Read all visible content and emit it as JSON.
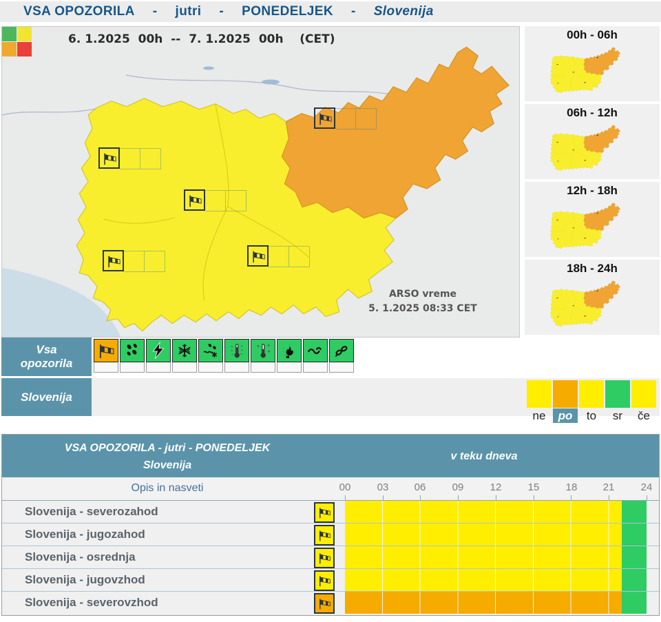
{
  "header": {
    "parts": [
      "VSA OPOZORILA",
      "-",
      "jutri",
      "-",
      "PONEDELJEK",
      "-",
      "Slovenija"
    ]
  },
  "map": {
    "date_range": "6. 1.2025  00h  --  7. 1.2025  00h    (CET)",
    "attribution_line1": "ARSO vreme",
    "attribution_line2": "5. 1.2025  08:33 CET",
    "legend_colors": {
      "green": "#4cb85c",
      "yellow": "#f2e430",
      "orange": "#f0a92f",
      "red": "#e8403a"
    },
    "region_colors": {
      "warning_yellow": "#f8ee2d",
      "warning_orange": "#f0a433"
    },
    "marker_icon": "windsock"
  },
  "timeline_maps": [
    {
      "label": "00h - 06h"
    },
    {
      "label": "06h - 12h"
    },
    {
      "label": "12h - 18h"
    },
    {
      "label": "18h - 24h"
    }
  ],
  "filters": {
    "all_warnings_label": "Vsa opozorila",
    "region_label": "Slovenija",
    "warning_types": [
      {
        "icon": "wind",
        "bg": "#f5ab00",
        "active": true
      },
      {
        "icon": "rain",
        "bg": "#2ecc63",
        "active": false
      },
      {
        "icon": "thunderstorm",
        "bg": "#2ecc63",
        "active": false
      },
      {
        "icon": "snow",
        "bg": "#2ecc63",
        "active": false
      },
      {
        "icon": "sleet",
        "bg": "#2ecc63",
        "active": false
      },
      {
        "icon": "heat",
        "bg": "#2ecc63",
        "active": false
      },
      {
        "icon": "cold",
        "bg": "#2ecc63",
        "active": false
      },
      {
        "icon": "wildfire",
        "bg": "#2ecc63",
        "active": false
      },
      {
        "icon": "sea",
        "bg": "#2ecc63",
        "active": false
      },
      {
        "icon": "ice",
        "bg": "#2ecc63",
        "active": false
      }
    ],
    "days": [
      {
        "label": "ne",
        "color": "#ffee00",
        "selected": false
      },
      {
        "label": "po",
        "color": "#f5ab00",
        "selected": true
      },
      {
        "label": "to",
        "color": "#ffee00",
        "selected": false
      },
      {
        "label": "sr",
        "color": "#2ecc63",
        "selected": false
      },
      {
        "label": "če",
        "color": "#ffee00",
        "selected": false
      }
    ]
  },
  "table": {
    "title_line1": "VSA OPOZORILA - jutri - PONEDELJEK",
    "title_line2": "Slovenija",
    "period_header": "v teku dneva",
    "subheader_left": "Opis in nasveti",
    "time_ticks": [
      "00",
      "03",
      "06",
      "09",
      "12",
      "15",
      "18",
      "21",
      "24"
    ],
    "hours_range": [
      0,
      24
    ],
    "rows": [
      {
        "label": "Slovenija - severozahod",
        "warning": "wind",
        "level": "yellow",
        "icon_bg": "#ffee00",
        "bar_color": "#ffee00",
        "warn_from": 0,
        "warn_to": 22,
        "end_color": "#2ecc63"
      },
      {
        "label": "Slovenija - jugozahod",
        "warning": "wind",
        "level": "yellow",
        "icon_bg": "#ffee00",
        "bar_color": "#ffee00",
        "warn_from": 0,
        "warn_to": 22,
        "end_color": "#2ecc63"
      },
      {
        "label": "Slovenija - osrednja",
        "warning": "wind",
        "level": "yellow",
        "icon_bg": "#ffee00",
        "bar_color": "#ffee00",
        "warn_from": 0,
        "warn_to": 22,
        "end_color": "#2ecc63"
      },
      {
        "label": "Slovenija - jugovzhod",
        "warning": "wind",
        "level": "yellow",
        "icon_bg": "#ffee00",
        "bar_color": "#ffee00",
        "warn_from": 0,
        "warn_to": 22,
        "end_color": "#2ecc63"
      },
      {
        "label": "Slovenija - severovzhod",
        "warning": "wind",
        "level": "orange",
        "icon_bg": "#f5ab00",
        "bar_color": "#f5ab00",
        "warn_from": 0,
        "warn_to": 22,
        "end_color": "#2ecc63"
      }
    ]
  }
}
